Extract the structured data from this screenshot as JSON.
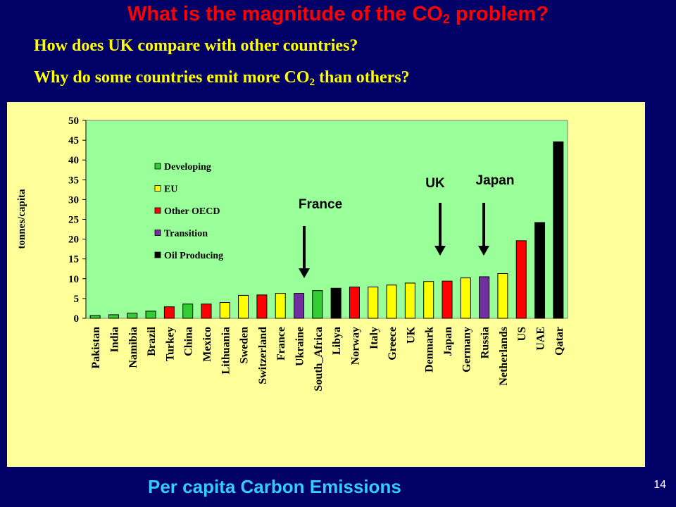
{
  "slide": {
    "title_pre": "What is the magnitude of the CO",
    "title_sub": "2",
    "title_post": " problem?",
    "question1": "How does UK compare with other countries?",
    "question2_pre": "Why do some countries emit more CO",
    "question2_sub": "2",
    "question2_post": " than others?",
    "footer": "Per capita Carbon Emissions",
    "page_number": "14"
  },
  "chart_data": {
    "type": "bar",
    "ylabel": "tonnes/capita",
    "ylim": [
      0,
      50
    ],
    "yticks": [
      0,
      5,
      10,
      15,
      20,
      25,
      30,
      35,
      40,
      45,
      50
    ],
    "grid": false,
    "plot_background": "#99ff99",
    "legend_position": "upper-left",
    "groups": [
      {
        "name": "Developing",
        "color": "#33cc33"
      },
      {
        "name": "EU",
        "color": "#ffff00"
      },
      {
        "name": "Other OECD",
        "color": "#ff0000"
      },
      {
        "name": "Transition",
        "color": "#7030a0"
      },
      {
        "name": "Oil Producing",
        "color": "#000000"
      }
    ],
    "categories": [
      "Pakistan",
      "India",
      "Namibia",
      "Brazil",
      "Turkey",
      "China",
      "Mexico",
      "Lithuania",
      "Sweden",
      "Switzerland",
      "France",
      "Ukraine",
      "South_Africa",
      "Libya",
      "Norway",
      "Italy",
      "Greece",
      "UK",
      "Denmark",
      "Japan",
      "Germany",
      "Russia",
      "Netherlands",
      "US",
      "UAE",
      "Qatar"
    ],
    "values": [
      0.7,
      0.9,
      1.3,
      1.8,
      2.9,
      3.6,
      3.6,
      4.0,
      5.8,
      5.9,
      6.3,
      6.3,
      7.0,
      7.6,
      7.9,
      7.9,
      8.4,
      8.9,
      9.3,
      9.4,
      10.2,
      10.5,
      11.3,
      19.6,
      24.2,
      44.6
    ],
    "bar_groups": [
      "Developing",
      "Developing",
      "Developing",
      "Developing",
      "Other OECD",
      "Developing",
      "Other OECD",
      "EU",
      "EU",
      "Other OECD",
      "EU",
      "Transition",
      "Developing",
      "Oil Producing",
      "Other OECD",
      "EU",
      "EU",
      "EU",
      "EU",
      "Other OECD",
      "EU",
      "Transition",
      "EU",
      "Other OECD",
      "Oil Producing",
      "Oil Producing"
    ],
    "annotations": [
      {
        "text": "France",
        "target": "France"
      },
      {
        "text": "UK",
        "target": "UK"
      },
      {
        "text": "Japan",
        "target": "Japan"
      }
    ]
  }
}
